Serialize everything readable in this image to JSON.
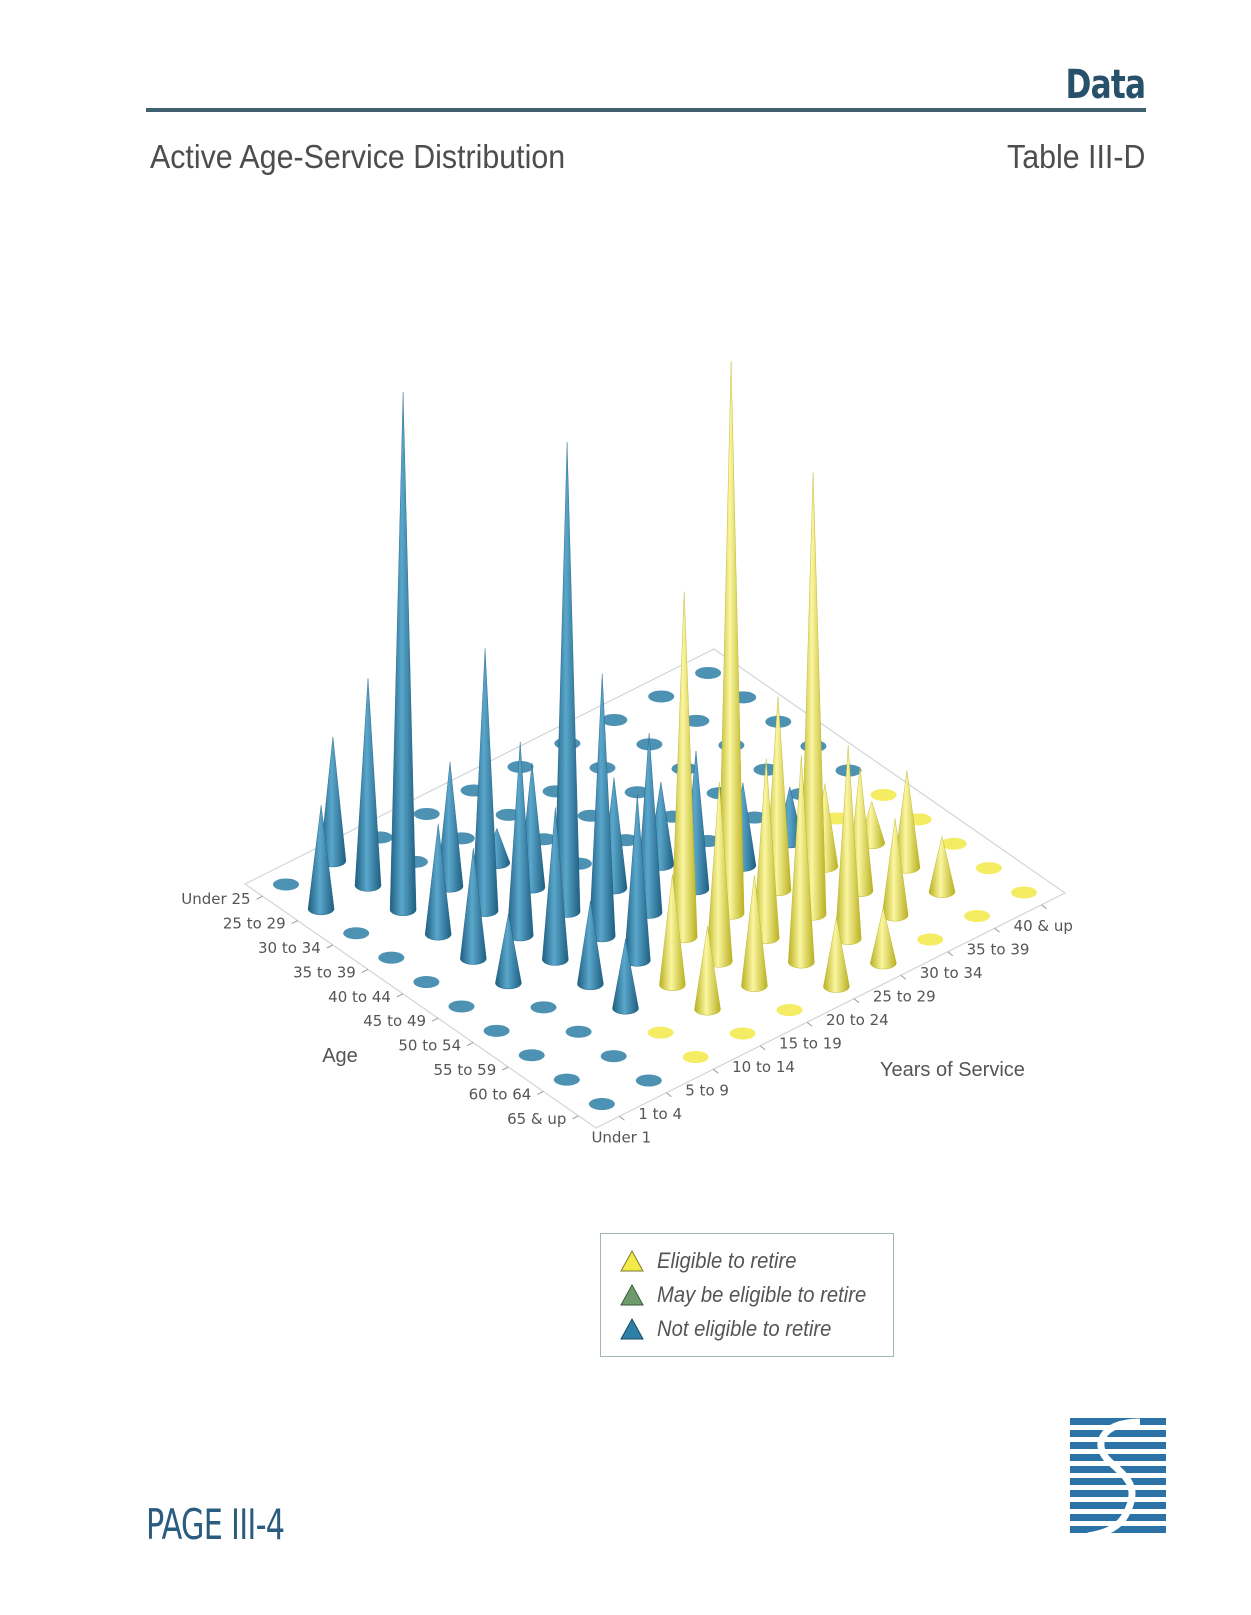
{
  "header": {
    "section": "Data",
    "title": "Active Age-Service Distribution",
    "table_id": "Table III-D"
  },
  "legend": {
    "items": [
      {
        "label": "Eligible to retire",
        "color": "#f2ea49"
      },
      {
        "label": "May be eligible to retire",
        "color": "#6f9a6c"
      },
      {
        "label": "Not eligible to retire",
        "color": "#2e7fa5"
      }
    ]
  },
  "footer": {
    "page": "PAGE III-4",
    "logo": "firm-logo-icon"
  },
  "chart_data": {
    "type": "3d-cone",
    "title": "",
    "xlabel": "Years of Service",
    "ylabel": "Age",
    "service_categories": [
      "Under 1",
      "1 to 4",
      "5 to 9",
      "10 to 14",
      "15 to 19",
      "20 to 24",
      "25 to 29",
      "30 to 34",
      "35 to 39",
      "40 & up"
    ],
    "age_categories": [
      "Under 25",
      "25 to 29",
      "30 to 34",
      "35 to 39",
      "40 to 44",
      "45 to 49",
      "50 to 54",
      "55 to 59",
      "60 to 64",
      "65 & up"
    ],
    "status_legend": {
      "E": "Eligible to retire",
      "M": "May be eligible to retire",
      "N": "Not eligible to retire"
    },
    "values": [
      [
        0,
        18,
        0,
        0,
        0,
        0,
        0,
        0,
        0,
        0
      ],
      [
        15,
        30,
        0,
        0,
        0,
        0,
        0,
        0,
        0,
        0
      ],
      [
        0,
        75,
        18,
        5,
        0,
        0,
        0,
        0,
        0,
        0
      ],
      [
        0,
        16,
        38,
        18,
        0,
        0,
        0,
        0,
        0,
        0
      ],
      [
        0,
        16,
        28,
        68,
        16,
        12,
        0,
        0,
        0,
        0
      ],
      [
        0,
        10,
        22,
        38,
        26,
        20,
        12,
        8,
        0,
        0
      ],
      [
        0,
        0,
        12,
        24,
        50,
        80,
        28,
        12,
        6,
        0
      ],
      [
        0,
        0,
        10,
        16,
        26,
        26,
        64,
        18,
        14,
        0
      ],
      [
        0,
        0,
        0,
        12,
        16,
        30,
        28,
        14,
        8,
        0
      ],
      [
        0,
        0,
        0,
        0,
        0,
        10,
        8,
        0,
        0,
        0
      ]
    ],
    "status": [
      [
        "N",
        "N",
        "N",
        "N",
        "N",
        "N",
        "N",
        "N",
        "N",
        "N"
      ],
      [
        "N",
        "N",
        "N",
        "N",
        "N",
        "N",
        "N",
        "N",
        "N",
        "N"
      ],
      [
        "N",
        "N",
        "N",
        "N",
        "N",
        "N",
        "N",
        "N",
        "N",
        "N"
      ],
      [
        "N",
        "N",
        "N",
        "N",
        "N",
        "N",
        "N",
        "N",
        "N",
        "N"
      ],
      [
        "N",
        "N",
        "N",
        "N",
        "N",
        "N",
        "N",
        "N",
        "N",
        "N"
      ],
      [
        "N",
        "N",
        "N",
        "N",
        "N",
        "N",
        "N",
        "N",
        "E",
        "E"
      ],
      [
        "N",
        "N",
        "N",
        "N",
        "E",
        "E",
        "E",
        "E",
        "E",
        "E"
      ],
      [
        "N",
        "N",
        "N",
        "E",
        "E",
        "E",
        "E",
        "E",
        "E",
        "E"
      ],
      [
        "N",
        "N",
        "E",
        "E",
        "E",
        "E",
        "E",
        "E",
        "E",
        "E"
      ],
      [
        "N",
        "N",
        "E",
        "E",
        "E",
        "E",
        "E",
        "E",
        "E",
        "E"
      ]
    ],
    "grid": false,
    "legend_position": "bottom-center"
  }
}
